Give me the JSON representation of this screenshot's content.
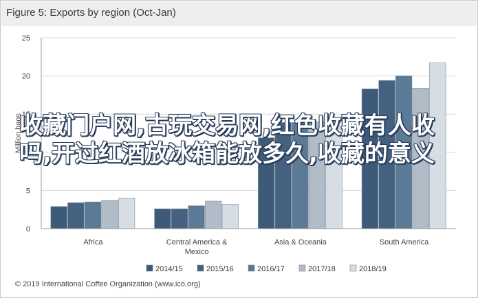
{
  "header": {
    "title": "Figure 5: Exports by region (Oct-Jan)"
  },
  "overlay_text": "收藏门户网,古玩交易网,红色收藏有人收吗,开过红酒放冰箱能放多久,收藏的意义",
  "footer": {
    "copyright": "© 2019 International Coffee Organization (www.ico.org)"
  },
  "chart_data": {
    "type": "bar",
    "ylabel": "Million bags",
    "ylim": [
      0,
      25
    ],
    "yticks": [
      0,
      5,
      10,
      15,
      20,
      25
    ],
    "grid": true,
    "legend_position": "bottom",
    "categories": [
      "Africa",
      "Central America &\nMexico",
      "Asia & Oceania",
      "South America"
    ],
    "series": [
      {
        "name": "2014/15",
        "color": "#3d5a78",
        "values": [
          2.9,
          2.6,
          11.9,
          18.3
        ]
      },
      {
        "name": "2015/16",
        "color": "#44617f",
        "values": [
          3.4,
          2.6,
          13.9,
          19.4
        ]
      },
      {
        "name": "2016/17",
        "color": "#5b7a95",
        "values": [
          3.5,
          3.0,
          13.9,
          20.0
        ]
      },
      {
        "name": "2017/18",
        "color": "#b0bdc8",
        "values": [
          3.7,
          3.6,
          14.0,
          18.4
        ]
      },
      {
        "name": "2018/19",
        "color": "#d7dee3",
        "values": [
          4.0,
          3.2,
          13.9,
          21.7
        ]
      }
    ]
  }
}
